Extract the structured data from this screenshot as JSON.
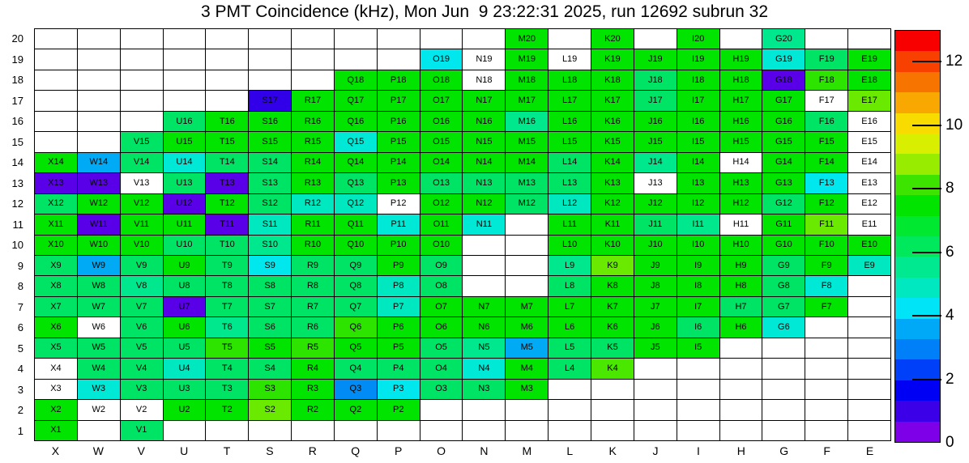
{
  "title": "3 PMT Coincidence (kHz), Mon Jun  9 23:22:31 2025, run 12692 subrun 32",
  "chart_data": {
    "type": "heatmap",
    "title": "3 PMT Coincidence (kHz), Mon Jun  9 23:22:31 2025, run 12692 subrun 32",
    "run": "12692",
    "subrun": "32",
    "timestamp": "Mon Jun  9 23:22:31 2025",
    "x_categories": [
      "X",
      "W",
      "V",
      "U",
      "T",
      "S",
      "R",
      "Q",
      "P",
      "O",
      "N",
      "M",
      "L",
      "K",
      "J",
      "I",
      "H",
      "G",
      "F",
      "E"
    ],
    "y_categories": [
      "20",
      "19",
      "18",
      "17",
      "16",
      "15",
      "14",
      "13",
      "12",
      "11",
      "10",
      "9",
      "8",
      "7",
      "6",
      "5",
      "4",
      "3",
      "2",
      "1"
    ],
    "color_classes": {
      "g": {
        "hex": "#00e400",
        "approx_value_khz": 7.0
      },
      "gy": {
        "hex": "#2ce400",
        "approx_value_khz": 7.9
      },
      "gy2": {
        "hex": "#4ae800",
        "approx_value_khz": 8.3
      },
      "ch": {
        "hex": "#6aea00",
        "approx_value_khz": 8.8
      },
      "sg": {
        "hex": "#00e466",
        "approx_value_khz": 6.0
      },
      "sg2": {
        "hex": "#00e88e",
        "approx_value_khz": 5.6
      },
      "tq": {
        "hex": "#00e8c0",
        "approx_value_khz": 4.9
      },
      "tc": {
        "hex": "#00e8d6",
        "approx_value_khz": 4.6
      },
      "cy": {
        "hex": "#00e8ee",
        "approx_value_khz": 4.2
      },
      "sky": {
        "hex": "#00aaf4",
        "approx_value_khz": 3.5
      },
      "db": {
        "hex": "#008cf4",
        "approx_value_khz": 3.1
      },
      "bl": {
        "hex": "#3200e8",
        "approx_value_khz": 1.5
      },
      "vi": {
        "hex": "#5a00e8",
        "approx_value_khz": 0.9
      },
      "w": {
        "hex": "#ffffff",
        "approx_value_khz": null
      }
    },
    "colorbar": {
      "min": 0,
      "max": 13,
      "ticks": [
        0,
        2,
        4,
        6,
        8,
        10,
        12
      ],
      "bands_bottom_to_top": [
        "#7d00e8",
        "#3c00e8",
        "#0000f4",
        "#0040f8",
        "#0080f8",
        "#00a8f8",
        "#00e4f8",
        "#00e8c0",
        "#00e890",
        "#00e85c",
        "#00e830",
        "#00e400",
        "#3ce400",
        "#98ec00",
        "#d8f000",
        "#f8dc00",
        "#f8a800",
        "#f87400",
        "#f84000",
        "#f80000"
      ]
    },
    "rows": [
      {
        "y": "20",
        "cells": [
          "",
          "",
          "",
          "",
          "",
          "",
          "",
          "",
          "",
          "",
          "",
          "M20|g",
          "",
          "K20|g",
          "",
          "I20|g",
          "",
          "G20|sg2",
          "",
          ""
        ]
      },
      {
        "y": "19",
        "cells": [
          "",
          "",
          "",
          "",
          "",
          "",
          "",
          "",
          "",
          "O19|cy",
          "N19|w",
          "M19|g",
          "L19|w",
          "K19|g",
          "J19|g",
          "I19|g",
          "H19|g",
          "G19|tc",
          "F19|sg",
          "E19|g"
        ]
      },
      {
        "y": "18",
        "cells": [
          "",
          "",
          "",
          "",
          "",
          "",
          "",
          "Q18|g",
          "P18|g",
          "O18|g",
          "N18|w",
          "M18|g",
          "L18|g",
          "K18|g",
          "J18|sg",
          "I18|g",
          "H18|g",
          "G18|vi",
          "F18|gy",
          "E18|g"
        ]
      },
      {
        "y": "17",
        "cells": [
          "",
          "",
          "",
          "",
          "",
          "S17|bl",
          "R17|g",
          "Q17|g",
          "P17|g",
          "O17|g",
          "N17|g",
          "M17|g",
          "L17|g",
          "K17|g",
          "J17|sg",
          "I17|g",
          "H17|g",
          "G17|g",
          "F17|w",
          "E17|ch"
        ]
      },
      {
        "y": "16",
        "cells": [
          "",
          "",
          "",
          "U16|sg",
          "T16|g",
          "S16|g",
          "R16|g",
          "Q16|g",
          "P16|g",
          "O16|g",
          "N16|g",
          "M16|sg2",
          "L16|g",
          "K16|g",
          "J16|g",
          "I16|g",
          "H16|g",
          "G16|g",
          "F16|sg",
          "E16|w"
        ]
      },
      {
        "y": "15",
        "cells": [
          "",
          "",
          "V15|sg",
          "U15|g",
          "T15|g",
          "S15|g",
          "R15|g",
          "Q15|tc",
          "P15|g",
          "O15|g",
          "N15|g",
          "M15|g",
          "L15|g",
          "K15|g",
          "J15|g",
          "I15|g",
          "H15|g",
          "G15|g",
          "F15|g",
          "E15|w"
        ]
      },
      {
        "y": "14",
        "cells": [
          "X14|g",
          "W14|sky",
          "V14|sg",
          "U14|tc",
          "T14|sg",
          "S14|sg",
          "R14|g",
          "Q14|g",
          "P14|g",
          "O14|g",
          "N14|g",
          "M14|g",
          "L14|sg",
          "K14|g",
          "J14|sg2",
          "I14|g",
          "H14|w",
          "G14|g",
          "F14|g",
          "E14|w"
        ]
      },
      {
        "y": "13",
        "cells": [
          "X13|vi",
          "W13|vi",
          "V13|w",
          "U13|sg",
          "T13|vi",
          "S13|sg",
          "R13|g",
          "Q13|sg",
          "P13|g",
          "O13|sg",
          "N13|sg",
          "M13|sg",
          "L13|sg",
          "K13|g",
          "J13|w",
          "I13|g",
          "H13|g",
          "G13|g",
          "F13|cy",
          "E13|w"
        ]
      },
      {
        "y": "12",
        "cells": [
          "X12|sg",
          "W12|g",
          "V12|g",
          "U12|vi",
          "T12|g",
          "S12|sg",
          "R12|tq",
          "Q12|tq",
          "P12|w",
          "O12|g",
          "N12|g",
          "M12|sg",
          "L12|tq",
          "K12|g",
          "J12|g",
          "I12|g",
          "H12|g",
          "G12|sg",
          "F12|g",
          "E12|w"
        ]
      },
      {
        "y": "11",
        "cells": [
          "X11|g",
          "W11|vi",
          "V11|g",
          "U11|g",
          "T11|vi",
          "S11|tq",
          "R11|g",
          "Q11|g",
          "P11|tc",
          "O11|g",
          "N11|tc",
          "",
          "L11|g",
          "K11|g",
          "J11|sg",
          "I11|sg2",
          "H11|w",
          "G11|g",
          "F11|ch",
          "E11|w"
        ]
      },
      {
        "y": "10",
        "cells": [
          "X10|g",
          "W10|g",
          "V10|g",
          "U10|sg",
          "T10|sg",
          "S10|sg2",
          "R10|g",
          "Q10|g",
          "P10|g",
          "O10|g",
          "",
          "",
          "L10|g",
          "K10|g",
          "J10|g",
          "I10|g",
          "H10|g",
          "G10|g",
          "F10|g",
          "E10|g"
        ]
      },
      {
        "y": "9",
        "cells": [
          "X9|sg",
          "W9|sky",
          "V9|sg",
          "U9|g",
          "T9|sg",
          "S9|cy",
          "R9|sg",
          "Q9|sg",
          "P9|g",
          "O9|sg",
          "",
          "",
          "L9|sg2",
          "K9|ch",
          "J9|g",
          "I9|g",
          "H9|g",
          "G9|sg",
          "F9|g",
          "E9|tq"
        ]
      },
      {
        "y": "8",
        "cells": [
          "X8|sg",
          "W8|sg",
          "V8|sg2",
          "U8|sg",
          "T8|sg",
          "S8|sg",
          "R8|sg",
          "Q8|sg",
          "P8|tq",
          "O8|sg",
          "",
          "",
          "L8|sg",
          "K8|g",
          "J8|g",
          "I8|g",
          "H8|g",
          "G8|sg",
          "F8|tc",
          ""
        ]
      },
      {
        "y": "7",
        "cells": [
          "X7|sg",
          "W7|sg",
          "V7|sg",
          "U7|vi",
          "T7|sg",
          "S7|sg",
          "R7|sg",
          "Q7|sg",
          "P7|tq",
          "O7|g",
          "N7|g",
          "M7|g",
          "L7|g",
          "K7|g",
          "J7|g",
          "I7|g",
          "H7|sg",
          "G7|sg",
          "F7|g",
          ""
        ]
      },
      {
        "y": "6",
        "cells": [
          "X6|g",
          "W6|w",
          "V6|sg",
          "U6|g",
          "T6|sg2",
          "S6|sg",
          "R6|sg",
          "Q6|gy",
          "P6|g",
          "O6|g",
          "N6|g",
          "M6|g",
          "L6|g",
          "K6|g",
          "J6|g",
          "I6|sg",
          "H6|g",
          "G6|tc",
          "",
          ""
        ]
      },
      {
        "y": "5",
        "cells": [
          "X5|sg",
          "W5|sg",
          "V5|sg",
          "U5|sg",
          "T5|gy",
          "S5|g",
          "R5|gy",
          "Q5|g",
          "P5|g",
          "O5|sg",
          "N5|sg2",
          "M5|sky",
          "L5|sg",
          "K5|sg",
          "J5|g",
          "I5|g",
          "",
          "",
          "",
          ""
        ]
      },
      {
        "y": "4",
        "cells": [
          "X4|w",
          "W4|sg",
          "V4|sg",
          "U4|tq",
          "T4|sg",
          "S4|sg",
          "R4|g",
          "Q4|sg",
          "P4|sg",
          "O4|sg",
          "N4|tc",
          "M4|g",
          "L4|sg",
          "K4|gy2",
          "",
          "",
          "",
          "",
          "",
          ""
        ]
      },
      {
        "y": "3",
        "cells": [
          "X3|w",
          "W3|tc",
          "V3|sg",
          "U3|sg",
          "T3|sg",
          "S3|gy",
          "R3|g",
          "Q3|db",
          "P3|cy",
          "O3|sg",
          "N3|sg",
          "M3|g",
          "",
          "",
          "",
          "",
          "",
          "",
          "",
          ""
        ]
      },
      {
        "y": "2",
        "cells": [
          "X2|g",
          "W2|w",
          "V2|w",
          "U2|g",
          "T2|g",
          "S2|ch",
          "R2|g",
          "Q2|g",
          "P2|g",
          "",
          "",
          "",
          "",
          "",
          "",
          "",
          "",
          "",
          "",
          ""
        ]
      },
      {
        "y": "1",
        "cells": [
          "X1|g",
          "",
          "V1|sg",
          "",
          "",
          "",
          "",
          "",
          "",
          "",
          "",
          "",
          "",
          "",
          "",
          "",
          "",
          "",
          "",
          ""
        ]
      }
    ]
  }
}
